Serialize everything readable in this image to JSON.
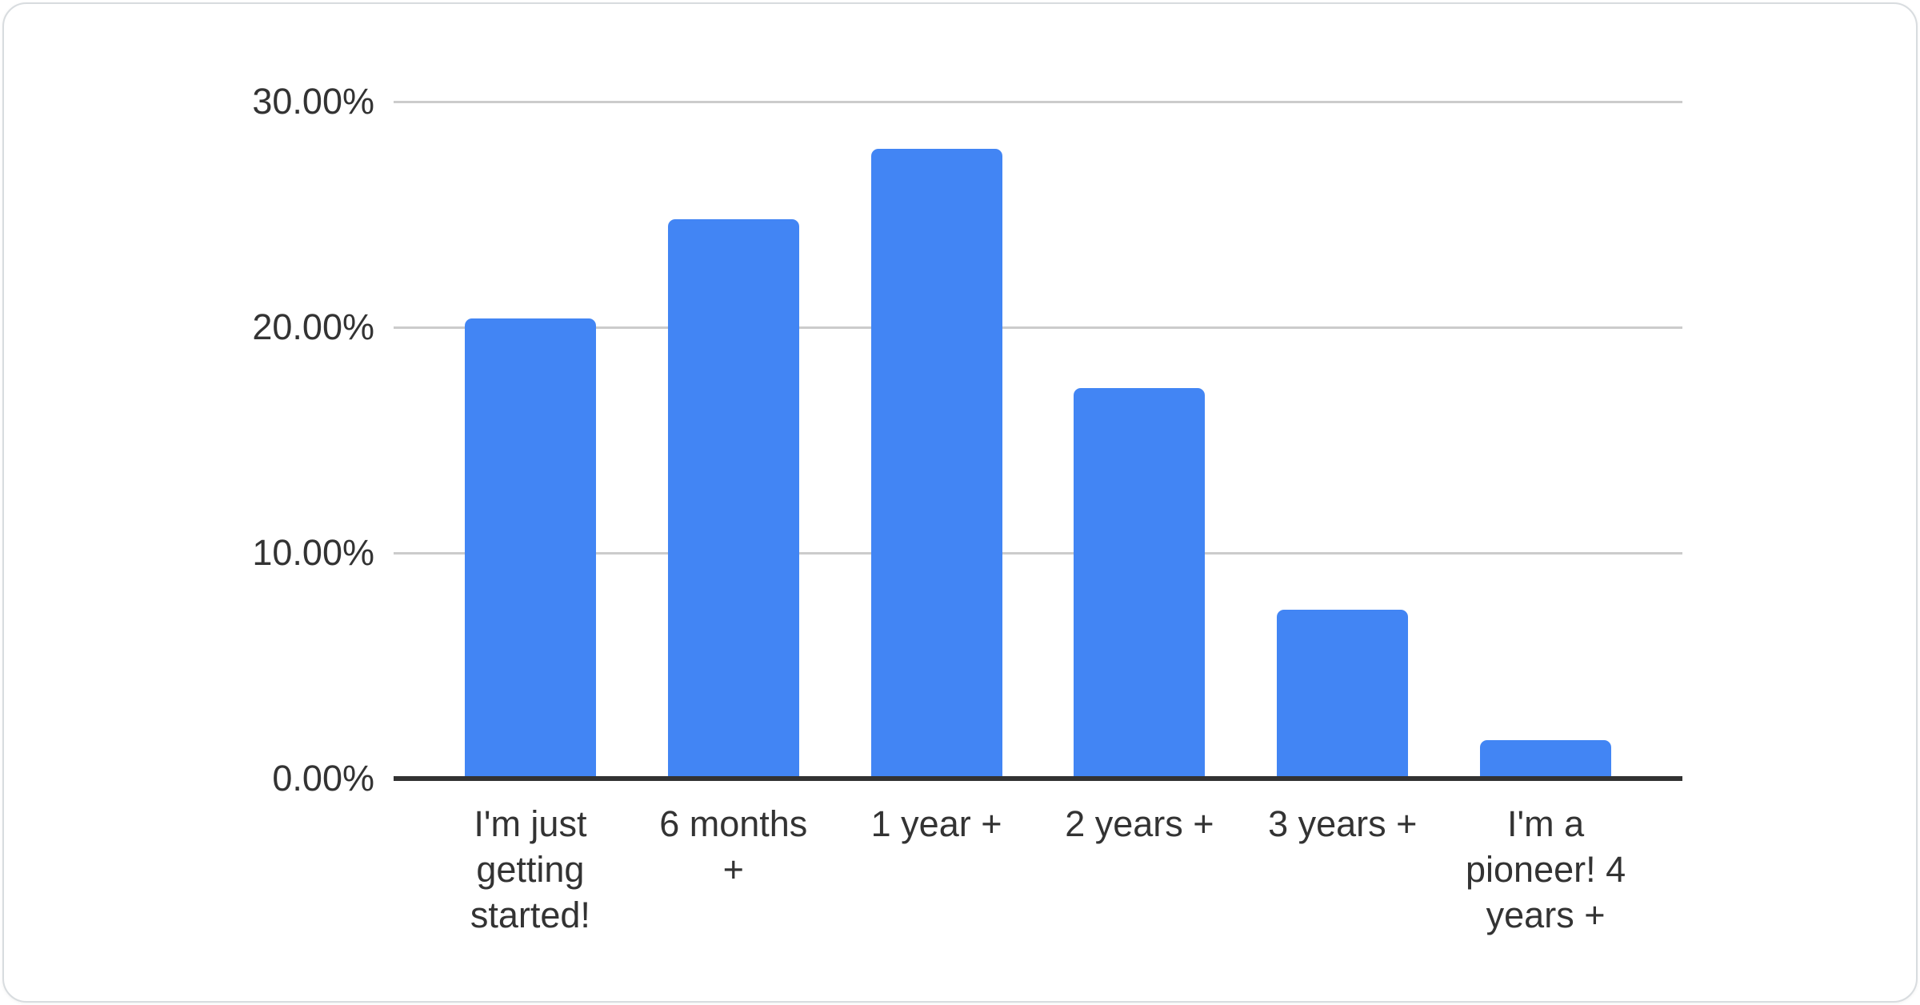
{
  "chart_data": {
    "type": "bar",
    "title": "",
    "xlabel": "",
    "ylabel": "",
    "categories": [
      "I'm just getting started!",
      "6 months +",
      "1 year +",
      "2 years +",
      "3 years +",
      "I'm a pioneer! 4 years +"
    ],
    "values": [
      20.4,
      24.8,
      27.9,
      17.3,
      7.5,
      1.7
    ],
    "y_ticks": [
      {
        "value": 0,
        "label": "0.00%"
      },
      {
        "value": 10,
        "label": "10.00%"
      },
      {
        "value": 20,
        "label": "20.00%"
      },
      {
        "value": 30,
        "label": "30.00%"
      }
    ],
    "ylim": [
      0,
      30
    ],
    "grid": true,
    "legend": "none",
    "colors": {
      "bar": "#4285f4",
      "gridline": "#cccccc",
      "axis_line": "#323232",
      "tick_label": "#333333",
      "category_label": "#333333"
    }
  }
}
